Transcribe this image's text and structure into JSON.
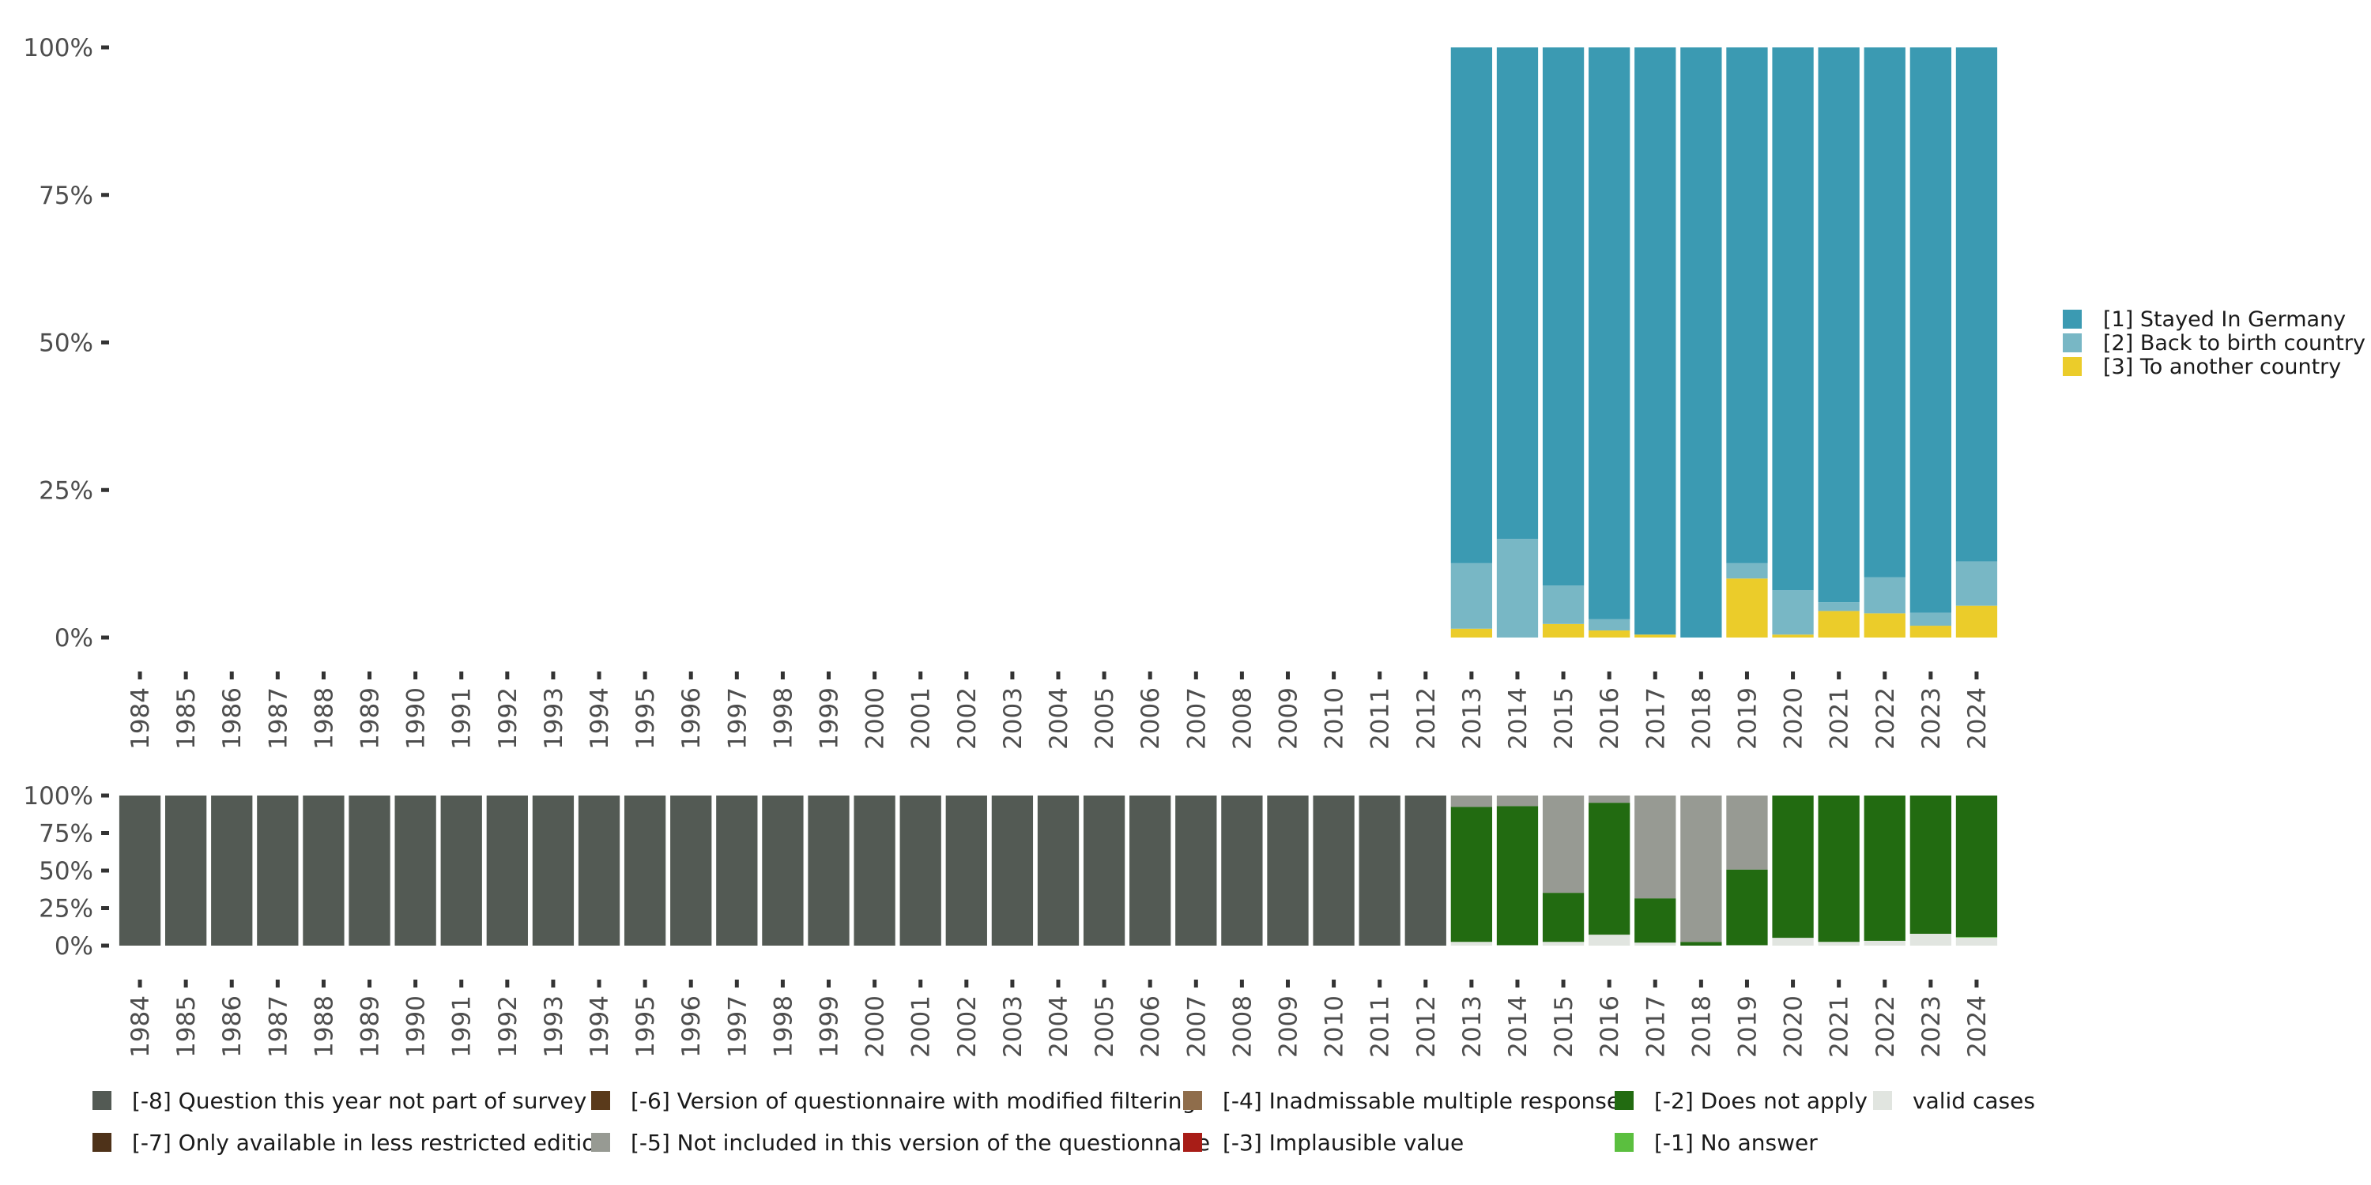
{
  "chart_data": [
    {
      "type": "bar",
      "stacked": true,
      "normalized": true,
      "title": "",
      "xlabel": "",
      "ylabel": "",
      "ylim": [
        0,
        100
      ],
      "ytick_labels": [
        "0%",
        "25%",
        "50%",
        "75%",
        "100%"
      ],
      "ytick_values": [
        0,
        25,
        50,
        75,
        100
      ],
      "categories": [
        "1984",
        "1985",
        "1986",
        "1987",
        "1988",
        "1989",
        "1990",
        "1991",
        "1992",
        "1993",
        "1994",
        "1995",
        "1996",
        "1997",
        "1998",
        "1999",
        "2000",
        "2001",
        "2002",
        "2003",
        "2004",
        "2005",
        "2006",
        "2007",
        "2008",
        "2009",
        "2010",
        "2011",
        "2012",
        "2013",
        "2014",
        "2015",
        "2016",
        "2017",
        "2018",
        "2019",
        "2020",
        "2021",
        "2022",
        "2023",
        "2024"
      ],
      "legend_position": "right",
      "series": [
        {
          "name": "[3] To another country",
          "color": "#EBCC2A",
          "values": [
            null,
            null,
            null,
            null,
            null,
            null,
            null,
            null,
            null,
            null,
            null,
            null,
            null,
            null,
            null,
            null,
            null,
            null,
            null,
            null,
            null,
            null,
            null,
            null,
            null,
            null,
            null,
            null,
            null,
            1.5,
            0.0,
            2.3,
            1.2,
            0.5,
            0.0,
            10.0,
            0.5,
            4.5,
            4.1,
            2.0,
            5.4
          ]
        },
        {
          "name": "[2] Back to birth country",
          "color": "#78B7C5",
          "values": [
            null,
            null,
            null,
            null,
            null,
            null,
            null,
            null,
            null,
            null,
            null,
            null,
            null,
            null,
            null,
            null,
            null,
            null,
            null,
            null,
            null,
            null,
            null,
            null,
            null,
            null,
            null,
            null,
            null,
            11.1,
            16.7,
            6.5,
            1.9,
            0.0,
            0.0,
            2.6,
            7.5,
            1.5,
            6.1,
            2.2,
            7.5
          ]
        },
        {
          "name": "[1] Stayed In Germany",
          "color": "#3B9AB2",
          "values": [
            null,
            null,
            null,
            null,
            null,
            null,
            null,
            null,
            null,
            null,
            null,
            null,
            null,
            null,
            null,
            null,
            null,
            null,
            null,
            null,
            null,
            null,
            null,
            null,
            null,
            null,
            null,
            null,
            null,
            87.4,
            83.3,
            91.2,
            96.9,
            99.5,
            100.0,
            87.4,
            92.0,
            94.0,
            89.8,
            95.8,
            87.1
          ]
        }
      ],
      "legend": [
        {
          "label": "[1] Stayed In Germany",
          "color": "#3B9AB2"
        },
        {
          "label": "[2] Back to birth country",
          "color": "#78B7C5"
        },
        {
          "label": "[3] To another country",
          "color": "#EBCC2A"
        }
      ]
    },
    {
      "type": "bar",
      "stacked": true,
      "normalized": true,
      "title": "",
      "xlabel": "",
      "ylabel": "",
      "ylim": [
        0,
        100
      ],
      "ytick_labels": [
        "0%",
        "25%",
        "50%",
        "75%",
        "100%"
      ],
      "ytick_values": [
        0,
        25,
        50,
        75,
        100
      ],
      "categories": [
        "1984",
        "1985",
        "1986",
        "1987",
        "1988",
        "1989",
        "1990",
        "1991",
        "1992",
        "1993",
        "1994",
        "1995",
        "1996",
        "1997",
        "1998",
        "1999",
        "2000",
        "2001",
        "2002",
        "2003",
        "2004",
        "2005",
        "2006",
        "2007",
        "2008",
        "2009",
        "2010",
        "2011",
        "2012",
        "2013",
        "2014",
        "2015",
        "2016",
        "2017",
        "2018",
        "2019",
        "2020",
        "2021",
        "2022",
        "2023",
        "2024"
      ],
      "legend_position": "bottom",
      "series": [
        {
          "name": "valid cases",
          "color": "#E1E5E0",
          "values": [
            0,
            0,
            0,
            0,
            0,
            0,
            0,
            0,
            0,
            0,
            0,
            0,
            0,
            0,
            0,
            0,
            0,
            0,
            0,
            0,
            0,
            0,
            0,
            0,
            0,
            0,
            0,
            0,
            0,
            2.5,
            0.3,
            2.5,
            7.3,
            2.0,
            0.0,
            0.3,
            5.2,
            2.5,
            3.2,
            7.9,
            5.4
          ]
        },
        {
          "name": "[-1] No answer",
          "color": "#5BBF3F",
          "values": [
            0,
            0,
            0,
            0,
            0,
            0,
            0,
            0,
            0,
            0,
            0,
            0,
            0,
            0,
            0,
            0,
            0,
            0,
            0,
            0,
            0,
            0,
            0,
            0,
            0,
            0,
            0,
            0,
            0,
            0,
            0,
            0,
            0,
            0,
            0,
            0,
            0,
            0,
            0,
            0,
            0.4
          ]
        },
        {
          "name": "[-2] Does not apply",
          "color": "#226B11",
          "values": [
            0,
            0,
            0,
            0,
            0,
            0,
            0,
            0,
            0,
            0,
            0,
            0,
            0,
            0,
            0,
            0,
            0,
            0,
            0,
            0,
            0,
            0,
            0,
            0,
            0,
            0,
            0,
            0,
            0,
            90.0,
            92.7,
            32.7,
            87.9,
            29.5,
            2.5,
            50.4,
            94.8,
            97.5,
            96.8,
            92.1,
            94.2
          ]
        },
        {
          "name": "[-5] Not included in this version of the questionnaire",
          "color": "#979A93",
          "values": [
            0,
            0,
            0,
            0,
            0,
            0,
            0,
            0,
            0,
            0,
            0,
            0,
            0,
            0,
            0,
            0,
            0,
            0,
            0,
            0,
            0,
            0,
            0,
            0,
            0,
            0,
            0,
            0,
            0,
            7.5,
            7.0,
            64.8,
            4.8,
            68.5,
            97.5,
            49.3,
            0,
            0,
            0,
            0,
            0
          ]
        },
        {
          "name": "[-8] Question this year not part of survey",
          "color": "#535A54",
          "values": [
            100,
            100,
            100,
            100,
            100,
            100,
            100,
            100,
            100,
            100,
            100,
            100,
            100,
            100,
            100,
            100,
            100,
            100,
            100,
            100,
            100,
            100,
            100,
            100,
            100,
            100,
            100,
            100,
            100,
            0,
            0,
            0,
            0,
            0,
            0,
            0,
            0,
            0,
            0,
            0,
            0
          ]
        }
      ],
      "legend": [
        {
          "label": "[-8] Question this year not part of survey",
          "color": "#535A54"
        },
        {
          "label": "[-7] Only available in less restricted edition",
          "color": "#4E3219"
        },
        {
          "label": "[-6] Version of questionnaire with modified filtering",
          "color": "#5A3A1B"
        },
        {
          "label": "[-5] Not included in this version of the questionnaire",
          "color": "#979A93"
        },
        {
          "label": "[-4] Inadmissable multiple response",
          "color": "#8F6D4B"
        },
        {
          "label": "[-3] Implausible value",
          "color": "#A81D17"
        },
        {
          "label": "[-2] Does not apply",
          "color": "#226B11"
        },
        {
          "label": "[-1] No answer",
          "color": "#5BBF3F"
        },
        {
          "label": "valid cases",
          "color": "#E1E5E0"
        }
      ]
    }
  ]
}
